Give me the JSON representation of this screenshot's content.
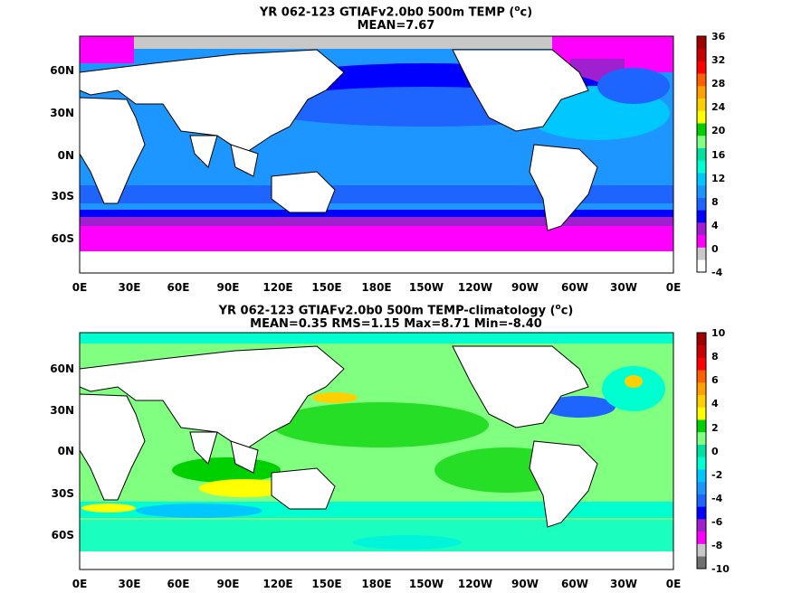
{
  "panel1": {
    "title_line1_pre": "YR 062-123 GTIAFv2.0b0 500m TEMP (",
    "title_sup": "o",
    "title_line1_post": "c)",
    "title_line2": "MEAN=7.67",
    "ylabels": [
      "60N",
      "30N",
      "0N",
      "30S",
      "60S"
    ],
    "xlabels": [
      "0E",
      "30E",
      "60E",
      "90E",
      "120E",
      "150E",
      "180E",
      "150W",
      "120W",
      "90W",
      "60W",
      "30W",
      "0E"
    ],
    "colorbar_labels": [
      "36",
      "32",
      "28",
      "24",
      "20",
      "16",
      "12",
      "8",
      "4",
      "0",
      "-4"
    ],
    "colorbar_colors": [
      "#ffffff",
      "#c8c8c8",
      "#ff00ff",
      "#a020d0",
      "#0000ff",
      "#1e64ff",
      "#1e96ff",
      "#00c8ff",
      "#00ffd0",
      "#00e0a0",
      "#80ff80",
      "#00d000",
      "#ffff00",
      "#ffd000",
      "#ffa000",
      "#ff6000",
      "#ff0000",
      "#c80000",
      "#a00000"
    ]
  },
  "panel2": {
    "title_line1_pre": "YR 062-123 GTIAFv2.0b0 500m TEMP-climatology (",
    "title_sup": "o",
    "title_line1_post": "c)",
    "title_line2": "MEAN=0.35   RMS=1.15   Max=8.71   Min=-8.40",
    "ylabels": [
      "60N",
      "30N",
      "0N",
      "30S",
      "60S"
    ],
    "xlabels": [
      "0E",
      "30E",
      "60E",
      "90E",
      "120E",
      "150E",
      "180E",
      "150W",
      "120W",
      "90W",
      "60W",
      "30W",
      "0E"
    ],
    "colorbar_labels": [
      "10",
      "8",
      "6",
      "4",
      "2",
      "0",
      "-2",
      "-4",
      "-6",
      "-8",
      "-10"
    ],
    "colorbar_colors": [
      "#707070",
      "#c8c8c8",
      "#ff00ff",
      "#a020d0",
      "#0000ff",
      "#1e64ff",
      "#1e96ff",
      "#00c8ff",
      "#00ffd0",
      "#00e0a0",
      "#80ff80",
      "#00d000",
      "#ffff00",
      "#ffd000",
      "#ffa000",
      "#ff6000",
      "#ff0000",
      "#c80000",
      "#a00000"
    ]
  }
}
